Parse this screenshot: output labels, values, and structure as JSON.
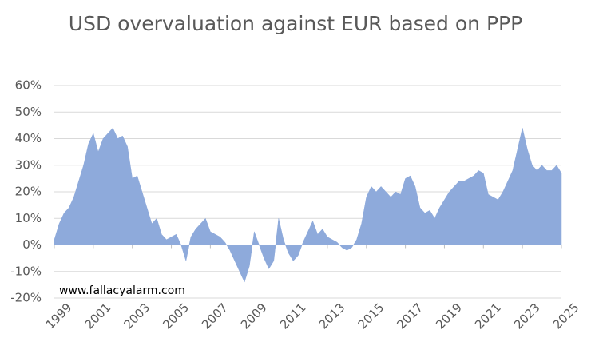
{
  "chart_data": {
    "type": "area",
    "title": "USD overvaluation against EUR based on PPP",
    "watermark": "www.fallacyalarm.com",
    "color": "#8eaadb",
    "grid": true,
    "x": [
      1999,
      1999.25,
      1999.5,
      1999.75,
      2000,
      2000.25,
      2000.5,
      2000.75,
      2001,
      2001.25,
      2001.5,
      2001.75,
      2002,
      2002.25,
      2002.5,
      2002.75,
      2003,
      2003.25,
      2003.5,
      2003.75,
      2004,
      2004.25,
      2004.5,
      2004.75,
      2005,
      2005.25,
      2005.5,
      2005.75,
      2006,
      2006.25,
      2006.5,
      2006.75,
      2007,
      2007.25,
      2007.5,
      2007.75,
      2008,
      2008.25,
      2008.5,
      2008.75,
      2009,
      2009.25,
      2009.5,
      2009.75,
      2010,
      2010.25,
      2010.5,
      2010.75,
      2011,
      2011.25,
      2011.5,
      2011.75,
      2012,
      2012.25,
      2012.5,
      2012.75,
      2013,
      2013.25,
      2013.5,
      2013.75,
      2014,
      2014.25,
      2014.5,
      2014.75,
      2015,
      2015.25,
      2015.5,
      2015.75,
      2016,
      2016.25,
      2016.5,
      2016.75,
      2017,
      2017.25,
      2017.5,
      2017.75,
      2018,
      2018.25,
      2018.5,
      2018.75,
      2019,
      2019.25,
      2019.5,
      2019.75,
      2020,
      2020.25,
      2020.5,
      2020.75,
      2021,
      2021.25,
      2021.5,
      2021.75,
      2022,
      2022.25,
      2022.5,
      2022.75,
      2023,
      2023.25,
      2023.5,
      2023.75,
      2024,
      2024.25,
      2024.5,
      2024.75,
      2025
    ],
    "values": [
      2,
      8,
      12,
      14,
      18,
      24,
      30,
      38,
      42,
      35,
      40,
      42,
      44,
      40,
      41,
      37,
      25,
      26,
      20,
      14,
      8,
      10,
      4,
      2,
      3,
      4,
      0,
      -6,
      3,
      6,
      8,
      10,
      5,
      4,
      3,
      1,
      -2,
      -6,
      -10,
      -14,
      -8,
      5,
      0,
      -5,
      -9,
      -6,
      10,
      2,
      -3,
      -6,
      -4,
      1,
      5,
      9,
      4,
      6,
      3,
      2,
      1,
      -1,
      -2,
      -1,
      2,
      8,
      18,
      22,
      20,
      22,
      20,
      18,
      20,
      19,
      25,
      26,
      22,
      14,
      12,
      13,
      10,
      14,
      17,
      20,
      22,
      24,
      24,
      25,
      26,
      28,
      27,
      19,
      18,
      17,
      20,
      24,
      28,
      36,
      44,
      36,
      30,
      28,
      30,
      28,
      28,
      30,
      27
    ],
    "xlim": [
      1999,
      2025
    ],
    "xticks": [
      1999,
      2001,
      2003,
      2005,
      2007,
      2009,
      2011,
      2013,
      2015,
      2017,
      2019,
      2021,
      2023,
      2025
    ],
    "ylim": [
      -20,
      60
    ],
    "yticks": [
      {
        "value": -20,
        "label": "-20%"
      },
      {
        "value": -10,
        "label": "-10%"
      },
      {
        "value": 0,
        "label": "0%"
      },
      {
        "value": 10,
        "label": "10%"
      },
      {
        "value": 20,
        "label": "20%"
      },
      {
        "value": 30,
        "label": "30%"
      },
      {
        "value": 40,
        "label": "40%"
      },
      {
        "value": 50,
        "label": "50%"
      },
      {
        "value": 60,
        "label": "60%"
      }
    ]
  }
}
